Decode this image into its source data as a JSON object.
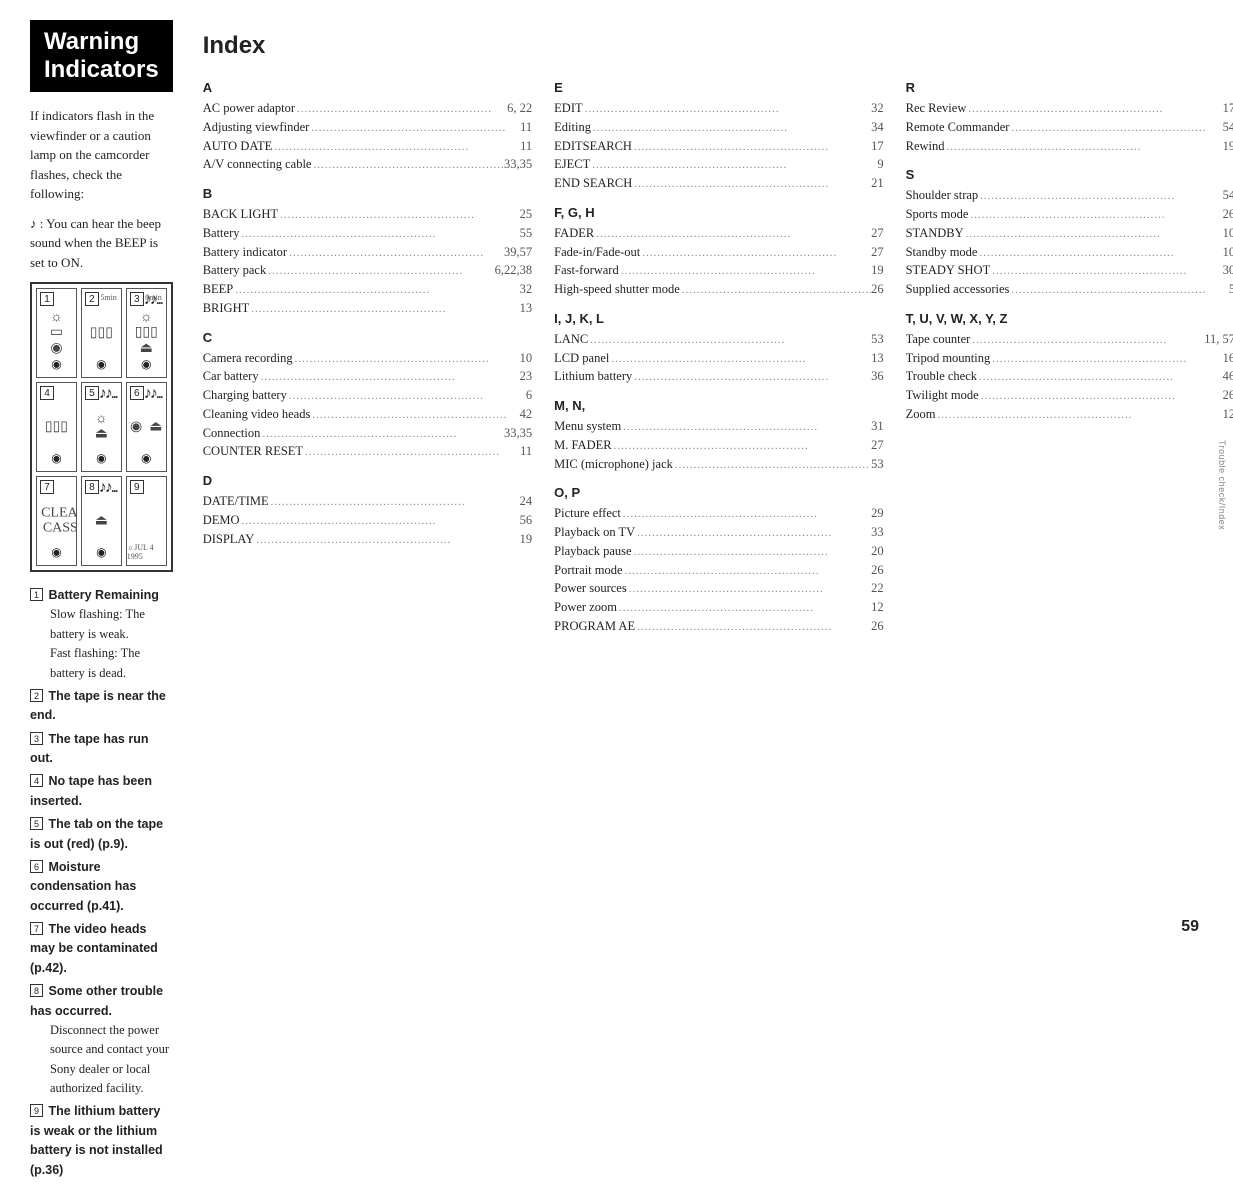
{
  "warning": {
    "title": "Warning Indicators",
    "intro1": "If indicators flash in the viewfinder or a caution lamp on the camcorder flashes, check the following:",
    "intro2": ": You can hear the beep sound when the BEEP is set to ON.",
    "panels": [
      {
        "n": "1",
        "glyph": "☼\n▭\n◉",
        "music": "",
        "extra": ""
      },
      {
        "n": "2",
        "glyph": "▯▯▯",
        "music": "",
        "extra": "5min"
      },
      {
        "n": "3",
        "glyph": "☼\n▯▯▯\n⏏",
        "music": "♪♪...",
        "extra": "0min"
      },
      {
        "n": "4",
        "glyph": "▯▯▯",
        "music": "",
        "extra": ""
      },
      {
        "n": "5",
        "glyph": "☼\n⏏",
        "music": "♪♪...",
        "extra": ""
      },
      {
        "n": "6",
        "glyph": "◉  ⏏",
        "music": "♪♪...",
        "extra": ""
      },
      {
        "n": "7",
        "glyph": "☼  →  CLEANING\n      ←  CASSETTE",
        "music": "",
        "extra": ""
      },
      {
        "n": "8",
        "glyph": "⏏",
        "music": "♪♪...",
        "extra": ""
      },
      {
        "n": "9",
        "glyph": "",
        "music": "",
        "extra": "☼JUL 4 1995"
      }
    ],
    "legend": [
      {
        "n": "1",
        "title": "Battery Remaining",
        "sub": [
          "Slow flashing: The battery is weak.",
          "Fast flashing: The battery is dead."
        ]
      },
      {
        "n": "2",
        "title": "The tape is near the end.",
        "sub": []
      },
      {
        "n": "3",
        "title": "The tape has run out.",
        "sub": []
      },
      {
        "n": "4",
        "title": "No tape has been inserted.",
        "sub": []
      },
      {
        "n": "5",
        "title": "The tab on the tape is out (red) (p.9).",
        "sub": []
      },
      {
        "n": "6",
        "title": "Moisture condensation has occurred (p.41).",
        "sub": []
      },
      {
        "n": "7",
        "title": "The video heads may be contaminated (p.42).",
        "sub": []
      },
      {
        "n": "8",
        "title": "Some other trouble has occurred.",
        "sub": [
          "Disconnect the power source and contact your Sony dealer or local authorized facility."
        ]
      },
      {
        "n": "9",
        "title": "The lithium battery is weak or the lithium battery is not installed (p.36)",
        "sub": []
      }
    ]
  },
  "index": {
    "title": "Index",
    "cols": [
      [
        {
          "h": "A",
          "rows": [
            {
              "t": "AC power adaptor",
              "p": "6, 22"
            },
            {
              "t": "Adjusting viewfinder",
              "p": "11"
            },
            {
              "t": "AUTO DATE",
              "p": "11"
            },
            {
              "t": "A/V connecting cable",
              "p": "33,35"
            }
          ]
        },
        {
          "h": "B",
          "rows": [
            {
              "t": "BACK LIGHT",
              "p": "25"
            },
            {
              "t": "Battery",
              "p": "55"
            },
            {
              "t": "Battery indicator",
              "p": "39,57"
            },
            {
              "t": "Battery pack",
              "p": "6,22,38"
            },
            {
              "t": "BEEP",
              "p": "32"
            },
            {
              "t": "BRIGHT",
              "p": "13"
            }
          ]
        },
        {
          "h": "C",
          "rows": [
            {
              "t": "Camera recording",
              "p": "10"
            },
            {
              "t": "Car battery",
              "p": "23"
            },
            {
              "t": "Charging battery",
              "p": "6"
            },
            {
              "t": "Cleaning video heads",
              "p": "42"
            },
            {
              "t": "Connection",
              "p": "33,35"
            },
            {
              "t": "COUNTER RESET",
              "p": "11"
            }
          ]
        },
        {
          "h": "D",
          "rows": [
            {
              "t": "DATE/TIME",
              "p": "24"
            },
            {
              "t": "DEMO",
              "p": "56"
            },
            {
              "t": "DISPLAY",
              "p": "19"
            }
          ]
        }
      ],
      [
        {
          "h": "E",
          "rows": [
            {
              "t": "EDIT",
              "p": "32"
            },
            {
              "t": "Editing",
              "p": "34"
            },
            {
              "t": "EDITSEARCH",
              "p": "17"
            },
            {
              "t": "EJECT",
              "p": "9"
            },
            {
              "t": "END SEARCH",
              "p": "21"
            }
          ]
        },
        {
          "h": "F, G, H",
          "rows": [
            {
              "t": "FADER",
              "p": "27"
            },
            {
              "t": "Fade-in/Fade-out",
              "p": "27"
            },
            {
              "t": "Fast-forward",
              "p": "19"
            },
            {
              "t": "High-speed shutter mode",
              "p": "26"
            }
          ]
        },
        {
          "h": "I, J, K, L",
          "rows": [
            {
              "t": "LANC",
              "p": "53"
            },
            {
              "t": "LCD panel",
              "p": "13"
            },
            {
              "t": "Lithium battery",
              "p": "36"
            }
          ]
        },
        {
          "h": "M, N,",
          "rows": [
            {
              "t": "Menu system",
              "p": "31"
            },
            {
              "t": "M. FADER",
              "p": "27"
            },
            {
              "t": "MIC (microphone) jack",
              "p": "53"
            }
          ]
        },
        {
          "h": "O, P",
          "rows": [
            {
              "t": "Picture effect",
              "p": "29"
            },
            {
              "t": "Playback on TV",
              "p": "33"
            },
            {
              "t": "Playback pause",
              "p": "20"
            },
            {
              "t": "Portrait mode",
              "p": "26"
            },
            {
              "t": "Power sources",
              "p": "22"
            },
            {
              "t": "Power zoom",
              "p": "12"
            },
            {
              "t": "PROGRAM AE",
              "p": "26"
            }
          ]
        }
      ],
      [
        {
          "h": "R",
          "rows": [
            {
              "t": "Rec Review",
              "p": "17"
            },
            {
              "t": "Remote Commander",
              "p": "54"
            },
            {
              "t": "Rewind",
              "p": "19"
            }
          ]
        },
        {
          "h": "S",
          "rows": [
            {
              "t": "Shoulder strap",
              "p": "54"
            },
            {
              "t": "Sports mode",
              "p": "26"
            },
            {
              "t": "STANDBY",
              "p": "10"
            },
            {
              "t": "Standby mode",
              "p": "10"
            },
            {
              "t": "STEADY SHOT",
              "p": "30"
            },
            {
              "t": "Supplied accessories",
              "p": "5"
            }
          ]
        },
        {
          "h": "T, U, V, W, X, Y, Z",
          "rows": [
            {
              "t": "Tape counter",
              "p": "11, 57"
            },
            {
              "t": "Tripod mounting",
              "p": "16"
            },
            {
              "t": "Trouble check",
              "p": "46"
            },
            {
              "t": "Twilight mode",
              "p": "26"
            },
            {
              "t": "Zoom",
              "p": "12"
            }
          ]
        }
      ]
    ]
  },
  "pageNumber": "59",
  "sideTab": "Trouble check/Index"
}
